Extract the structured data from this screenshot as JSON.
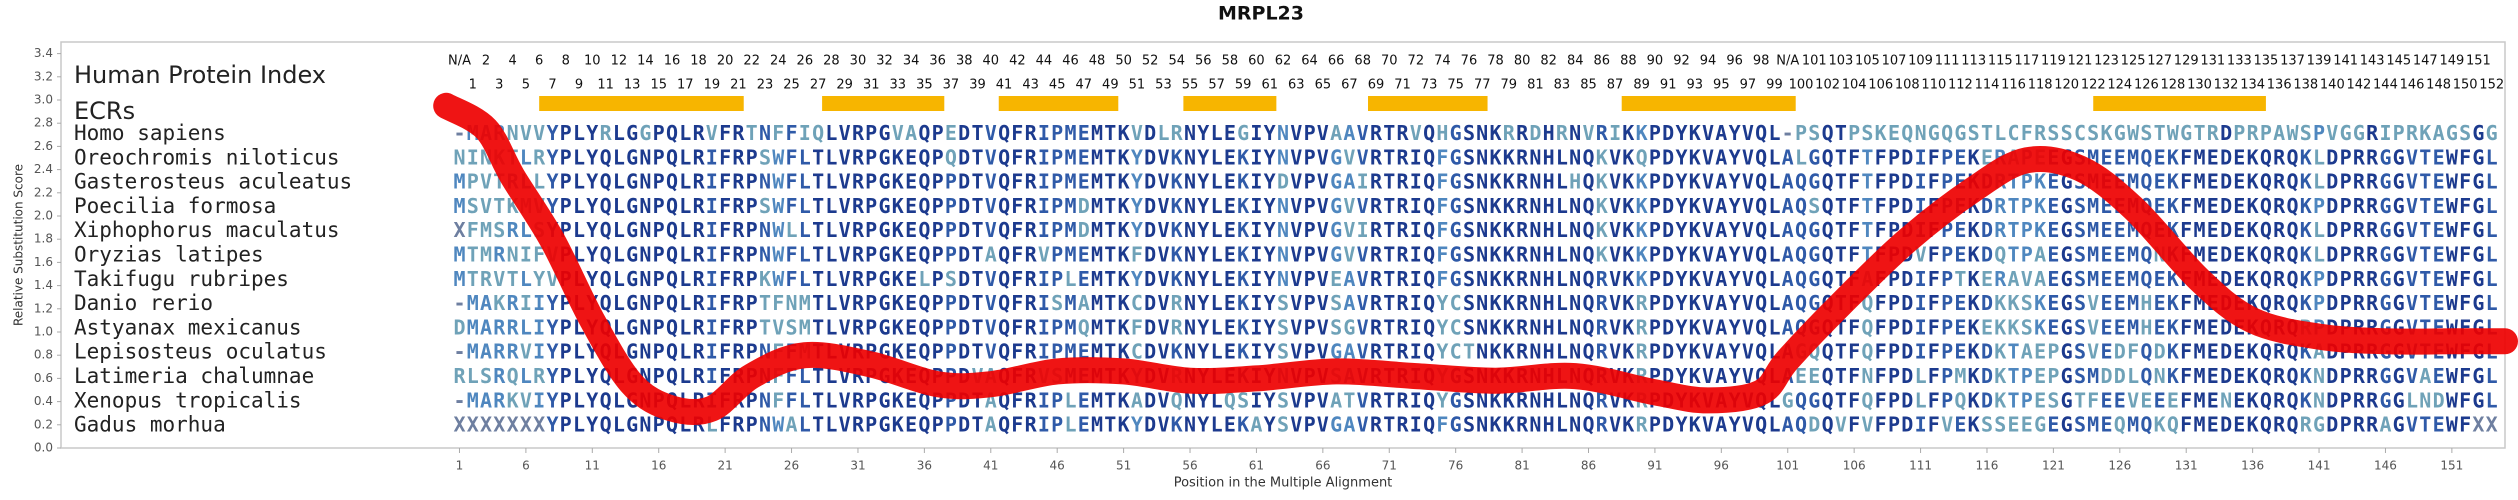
{
  "chart_data": {
    "type": "line",
    "title": "MRPL23",
    "y_label": "Relative Substitution Score",
    "x_label": "Position in the Multiple Alignment",
    "ylim": [
      0,
      3.5
    ],
    "yticks": [
      {
        "value": 0,
        "label": "0.0"
      },
      0.2,
      0.4,
      0.6,
      0.8,
      {
        "value": 1,
        "label": "1.0"
      },
      1.2,
      1.4,
      1.6,
      1.8,
      {
        "value": 2,
        "label": "2.0"
      },
      2.2,
      2.4,
      2.6,
      2.8,
      {
        "value": 3,
        "label": "3.0"
      },
      3.2,
      3.4
    ],
    "xlim": [
      -29,
      155
    ],
    "xticks": [
      1,
      6,
      11,
      16,
      21,
      26,
      31,
      36,
      41,
      46,
      51,
      56,
      61,
      66,
      71,
      76,
      81,
      86,
      91,
      96,
      101,
      106,
      111,
      116,
      121,
      126,
      131,
      136,
      141,
      146,
      151
    ],
    "color": "#ee0000",
    "x": [
      0,
      3,
      5,
      8,
      11,
      14,
      17,
      20,
      23,
      27,
      32,
      37,
      41,
      46,
      51,
      56,
      61,
      67,
      73,
      79,
      85,
      91,
      95,
      99,
      101,
      105,
      110,
      115,
      119,
      123,
      127,
      132,
      136,
      141,
      146,
      151,
      155
    ],
    "values": [
      2.95,
      2.75,
      2.34,
      1.79,
      1.1,
      0.55,
      0.34,
      0.34,
      0.62,
      0.8,
      0.72,
      0.55,
      0.55,
      0.66,
      0.66,
      0.58,
      0.6,
      0.66,
      0.62,
      0.58,
      0.62,
      0.48,
      0.41,
      0.48,
      0.76,
      1.24,
      1.79,
      2.23,
      2.48,
      2.41,
      2.07,
      1.45,
      1.1,
      0.96,
      0.92,
      0.92,
      0.92
    ]
  },
  "alignment": {
    "index_label": "Human Protein Index",
    "ecr_label": "ECRs",
    "ecr_color": "#f7b500",
    "ecrs": [
      [
        7,
        22.4
      ],
      [
        28.3,
        37.5
      ],
      [
        41.6,
        50.6
      ],
      [
        55.5,
        62.5
      ],
      [
        69.4,
        78.4
      ],
      [
        88.5,
        101.6
      ],
      [
        124,
        137
      ]
    ],
    "human_index": [
      "N/A",
      1,
      2,
      3,
      4,
      5,
      6,
      7,
      8,
      9,
      10,
      11,
      12,
      13,
      14,
      15,
      16,
      17,
      18,
      19,
      20,
      21,
      22,
      23,
      24,
      25,
      26,
      27,
      28,
      29,
      30,
      31,
      32,
      33,
      34,
      35,
      36,
      37,
      38,
      39,
      40,
      41,
      42,
      43,
      44,
      45,
      46,
      47,
      48,
      49,
      50,
      51,
      52,
      53,
      54,
      55,
      56,
      57,
      58,
      59,
      60,
      61,
      62,
      63,
      64,
      65,
      66,
      67,
      68,
      69,
      70,
      71,
      72,
      73,
      74,
      75,
      76,
      77,
      78,
      79,
      80,
      81,
      82,
      83,
      84,
      85,
      86,
      87,
      88,
      89,
      90,
      91,
      92,
      93,
      94,
      95,
      96,
      97,
      98,
      99,
      "N/A",
      100,
      101,
      102,
      103,
      104,
      105,
      106,
      107,
      108,
      109,
      110,
      111,
      112,
      113,
      114,
      115,
      116,
      117,
      118,
      119,
      120,
      121,
      122,
      123,
      124,
      125,
      126,
      127,
      128,
      129,
      130,
      131,
      132,
      133,
      134,
      135,
      136,
      137,
      138,
      139,
      140,
      141,
      142,
      143,
      144,
      145,
      146,
      147,
      148,
      149,
      150,
      151,
      152
    ],
    "sequences": [
      {
        "species": "Homo sapiens",
        "seq": "-MARNVVYPLYRLGGPQLRVFRTNFFIQLVRPGVAQPEDTVQFRIPMEMTKVDLRNYLEGIYNVPVAAVRTRVQHGSNKRRDHRNVRIKKPDYKVAYVQL-PSQTPSKEQNGQGSTLCFRSSCSKGWSTWGTRDPRPAWSPVGGRIPRKAGSGG"
      },
      {
        "species": "Oreochromis niloticus",
        "seq": "NINKTLRYPLYQLGNPQLRIFRPSWFLTLVRPGKEQPQDTVQFRIPMEMTKYDVKNYLEKIYNVPVGVVRTRIQFGSNKKRNHLNQKVKQPDYKVAYVQLALGQTFTFPDIFPEKERAPEEGSMEEMQEKFMEDEKQRQKLDPRRGGVTEWFGL"
      },
      {
        "species": "Gasterosteus aculeatus",
        "seq": "MPVTRLLYPLYQLGNPQLRIFRPNWFLTLVRPGKEQPPDTVQFRIPMEMTKYDVKNYLEKIYDVPVGAIRTRIQFGSNKKRNHLHQKVKKPDYKVAYVQLAQGQTFTFPDIFPEKDRTPKEGSMEEMQEKFMEDEKQRQKLDPRRGGVTEWFGL"
      },
      {
        "species": "Poecilia formosa",
        "seq": "MSVTKMVYPLYQLGNPQLRIFRPSWFLTLVRPGKEQPPDTVQFRIPMDMTKYDVKNYLEKIYNVPVGVVRTRIQFGSNKKRNHLNQKVKKPDYKVAYVQLAQSQTFTFPDIFPEKDRTPKEGSMEEMQEKFMEDEKQRQKPDPRRGGVTEWFGL"
      },
      {
        "species": "Xiphophorus maculatus",
        "seq": "XFMSRLSYPLYQLGNPQLRIFRPNWLLTLVRPGKEQPPDTVQFRIPMDMTKYDVKNYLEKIYNVPVGVIRTRIQFGSNKKRNHLNQKVKKPDYKVAYVQLAQGQTFTFPDIFPEKDRTPKEGSMEEMQEKFMEDEKQRQKLDPRRGGVTEWFGL"
      },
      {
        "species": "Oryzias latipes",
        "seq": "MTMRNIFVPLYQLGNPQLRIFRPNWFLTLVRPGKEQPPDTAQFRVPMEMTKFDVKNYLEKIYNVPVGVVRTRIQFGSNKKRNHLNQKVKKPDYKVAYVQLAQGQTFTFPDVFPEKDQTPAEGSMEEMQNKFMEDEKQRQKLDPRRGGVTEWFGL"
      },
      {
        "species": "Takifugu rubripes",
        "seq": "MTRVTLYVPLYQLGNPQLRIFRPKWFLTLVRPGKELPSDTVQFRIPLEMTKYDVKNYLEKIYNVPVEAVRTRIQFGSNKKRNHLNQRVKKPDYKVAYVQLAQGQTFAFPDIFPTKERAVAEGSMEEMQEKFMEDEKQRQKPDPRRGGVTEWFGL"
      },
      {
        "species": "Danio rerio",
        "seq": "-MAKRIIYPLYQLGNPQLRIFRPTFNMTLVRPGKEQPPDTVQFRISMAMTKCDVRNYLEKIYSVPVSAVRTRIQYCSNKKRNHLNQRVKRPDYKVAYVQLAQGQTFQFPDIFPEKDKKSKEGSVEEMHEKFMEDEKQRQKPDPRRGGVTEWFGL"
      },
      {
        "species": "Astyanax mexicanus",
        "seq": "DMARRLIYPLYQLGNPQLRIFRPTVSMTLVRPGKEQPPDTVQFRIPMQMTKFDVRNYLEKIYSVPVSGVRTRIQYCSNKKRNHLNQRVKRPDYKVAYVQLAQGQTFQFPDIFPEKEKKSKEGSVEEMHEKFMEDEKQRQRPDPRRGGVTEWFGL"
      },
      {
        "species": "Lepisosteus oculatus",
        "seq": "-MARRVIYPLYQLGNPQLRIFRPNFFMTLVRPGKEQPPDTVQFRIPMEMTKCDVKNYLEKIYSVPVGAVRTRIQYCTNKKRNHLNQRVKRPDYKVAYVQLAGQQTFQFPDIFPEKDKTAEPGSVEDFQDKFMEDEKQRQKADPRRGGVTEWFGL"
      },
      {
        "species": "Latimeria chalumnae",
        "seq": "RLSRQLRYPLYQLGNPQLRIFRPNFFLTLVRPGKEQPPDVAQFRVSMEMTKYDVRNYLEKIYNVPVSAVRTRIQYGSNKKRNHLNQRVKRPDYKVAYVQLAEEQTFNFPDLFPMKDKTPEPGSMDDLQNKFMEDEKQRQKNDPRRGGVAEWFGL"
      },
      {
        "species": "Xenopus tropicalis",
        "seq": "-MARKVIYPLYQLGNPQLRIFRPNFFLTLVRPGKEQPPDTAQFRIPLEMTKADVQNYLQSIYSVPVATVRTRIQYGSNKKRNHLNQRVKRPDYKVAYVQLGQGQTFQFPDLFPQKDKTPESGTFEEVEEEFMENEKQRQKNDPRRGGLNDWFGL"
      },
      {
        "species": "Gadus morhua",
        "seq": "XXXXXXXYPLYQLGNPQLRLFRPNWALTLVRPGKEQPPDTAQFRIPLEMTKYDVKNYLEKAYSVPVGAVRTRIQFGSNKKRNHLNQRVKRPDYKVAYVQLAQDQVFVFPDIFVEKSSEEGEGSMEQMQKQFMEDEKQRQRGDPRRAGVTEWFXX"
      }
    ]
  }
}
